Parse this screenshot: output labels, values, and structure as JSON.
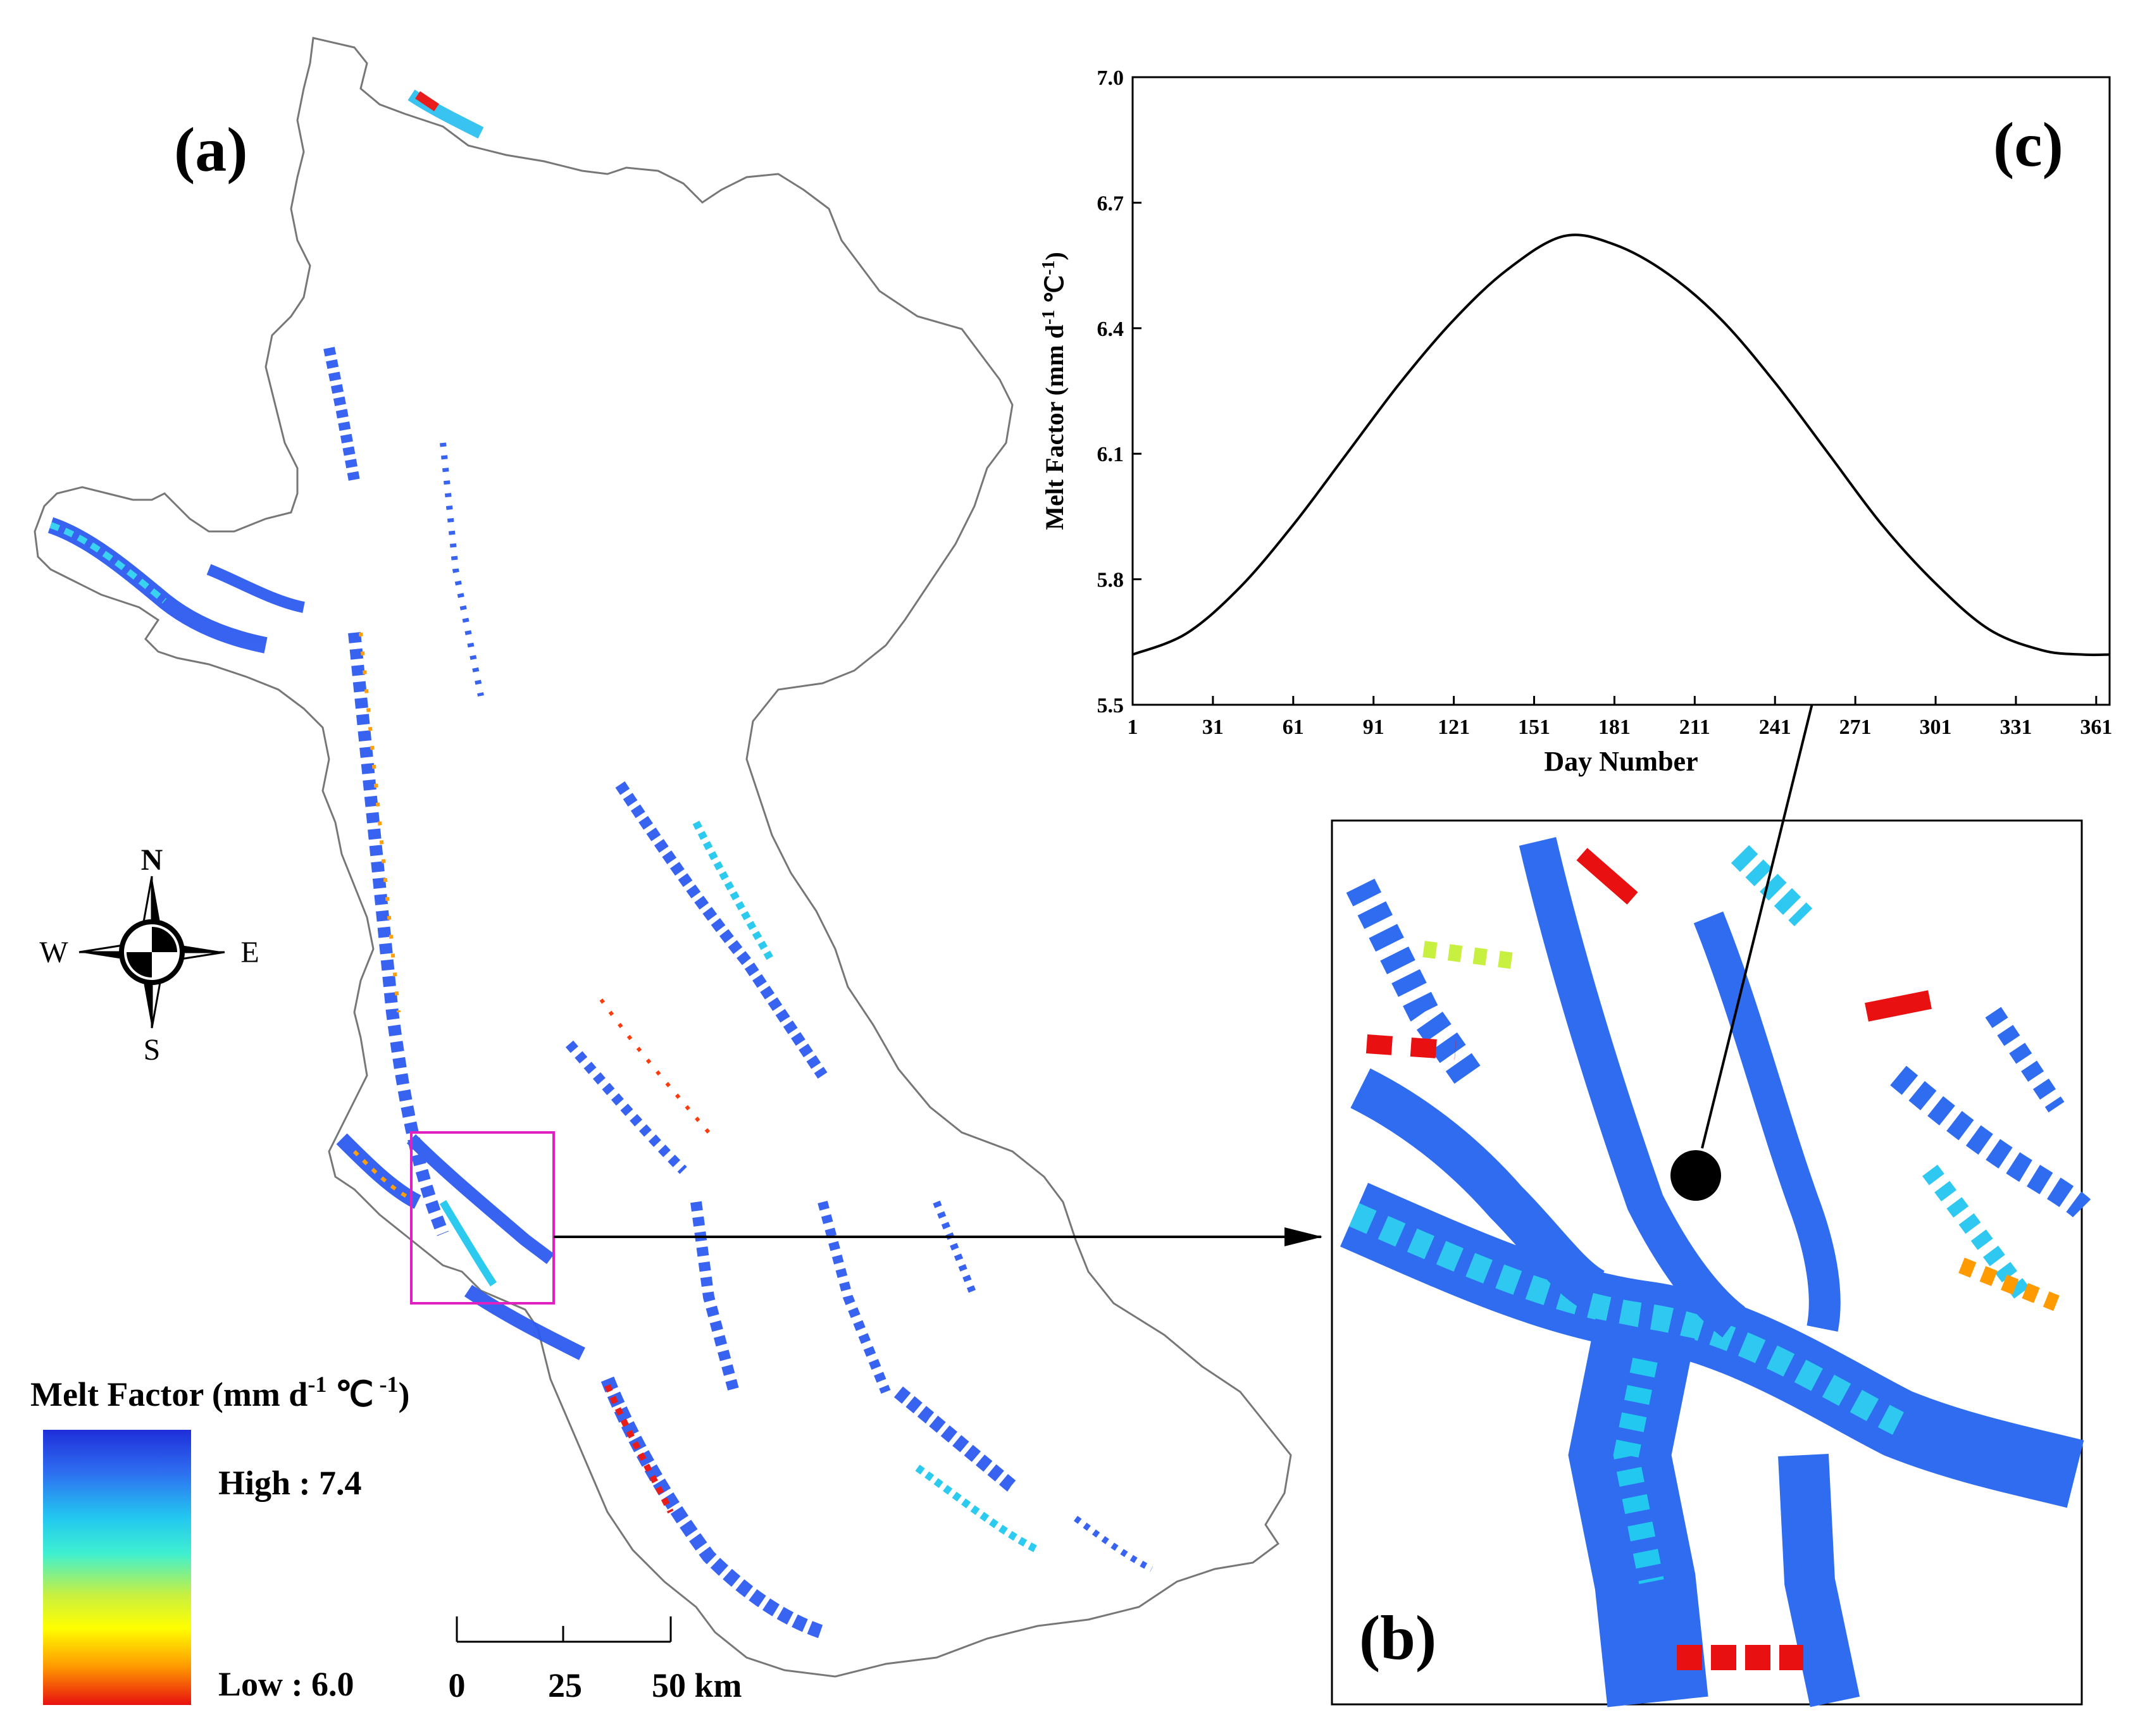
{
  "panels": {
    "a": "(a)",
    "b": "(b)",
    "c": "(c)"
  },
  "compass": {
    "n": "N",
    "s": "S",
    "e": "E",
    "w": "W"
  },
  "legend": {
    "title_main": "Melt Factor (mm d",
    "title_sup1": "-1",
    "title_mid": " ℃",
    "title_sup2": " -1",
    "title_end": ")",
    "high_label": "High : 7.4",
    "low_label": "Low : 6.0",
    "colors": [
      "#1f2fd9",
      "#2e6cf0",
      "#22c0f0",
      "#3ff0d0",
      "#c8f040",
      "#ffff00",
      "#ff9a00",
      "#ff2000",
      "#e01010"
    ]
  },
  "scalebar": {
    "tick_labels": [
      "0",
      "25",
      "50 km"
    ]
  },
  "chart_data": {
    "type": "line",
    "title": "",
    "xlabel": "Day Number",
    "ylabel_main": "Melt Factor (mm d",
    "ylabel_sup1": "-1",
    "ylabel_mid": " ℃",
    "ylabel_sup2": "-1",
    "ylabel_end": ")",
    "xlim": [
      1,
      366
    ],
    "ylim": [
      5.5,
      7.0
    ],
    "x_ticks": [
      1,
      31,
      61,
      91,
      121,
      151,
      181,
      211,
      241,
      271,
      301,
      331,
      361
    ],
    "y_ticks": [
      "5.5",
      "5.8",
      "6.1",
      "6.4",
      "6.7",
      "7.0"
    ],
    "series": [
      {
        "x": [
          1,
          21,
          41,
          61,
          81,
          101,
          121,
          141,
          162,
          181,
          201,
          221,
          241,
          261,
          281,
          301,
          321,
          341,
          356,
          366
        ],
        "y": [
          5.62,
          5.67,
          5.78,
          5.93,
          6.1,
          6.27,
          6.42,
          6.54,
          6.62,
          6.6,
          6.53,
          6.42,
          6.27,
          6.1,
          5.93,
          5.79,
          5.68,
          5.63,
          5.62,
          5.62
        ]
      }
    ]
  }
}
